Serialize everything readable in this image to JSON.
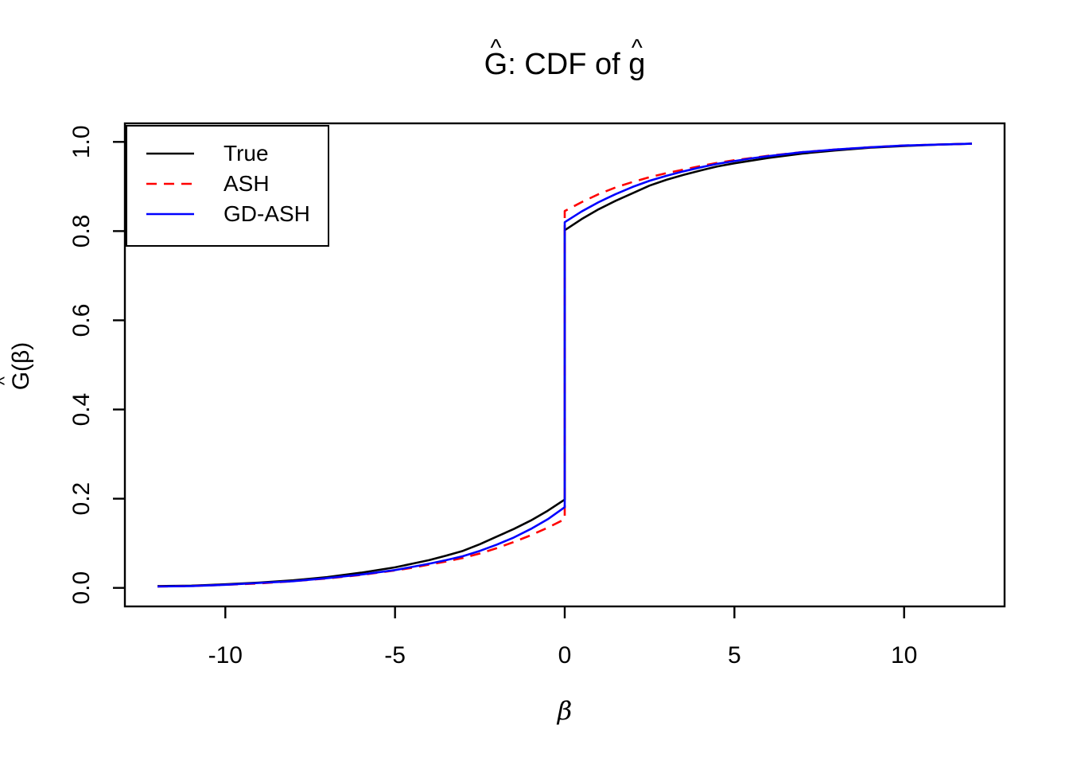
{
  "chart_data": {
    "type": "line",
    "title": "Ĝ: CDF of ĝ",
    "title_parts": [
      {
        "text": "G",
        "hat": true
      },
      {
        "text": ": CDF of ",
        "hat": false
      },
      {
        "text": "g",
        "hat": true
      }
    ],
    "hat_char": "^",
    "xlabel": "β",
    "ylabel": "Ĝ(β)",
    "ylabel_parts": [
      {
        "text": "G",
        "hat": true
      },
      {
        "text": "(β)",
        "hat": false
      }
    ],
    "xlim": [
      -12.96,
      12.96
    ],
    "ylim": [
      -0.0416,
      1.0416
    ],
    "grid": false,
    "background": "#FFFFFF",
    "axis_color": "#000000",
    "x_ticks": [
      {
        "value": -10,
        "label": "-10"
      },
      {
        "value": -5,
        "label": "-5"
      },
      {
        "value": 0,
        "label": "0"
      },
      {
        "value": 5,
        "label": "5"
      },
      {
        "value": 10,
        "label": "10"
      }
    ],
    "y_ticks": [
      {
        "value": 0.0,
        "label": "0.0"
      },
      {
        "value": 0.2,
        "label": "0.2"
      },
      {
        "value": 0.4,
        "label": "0.4"
      },
      {
        "value": 0.6,
        "label": "0.6"
      },
      {
        "value": 0.8,
        "label": "0.8"
      },
      {
        "value": 1.0,
        "label": "1.0"
      }
    ],
    "legend": {
      "position": "topleft",
      "entries": [
        {
          "label": "True",
          "color": "#000000",
          "dash": null
        },
        {
          "label": "ASH",
          "color": "#FF0000",
          "dash": [
            13,
            9
          ]
        },
        {
          "label": "GD-ASH",
          "color": "#0000FF",
          "dash": null
        }
      ]
    },
    "series": [
      {
        "name": "True",
        "color": "#000000",
        "dash": null,
        "jump_at_zero": {
          "from": 0.198,
          "to": 0.802
        },
        "points": [
          [
            -12,
            0.004
          ],
          [
            -11,
            0.005
          ],
          [
            -10,
            0.008
          ],
          [
            -9,
            0.012
          ],
          [
            -8,
            0.017
          ],
          [
            -7,
            0.024
          ],
          [
            -6,
            0.034
          ],
          [
            -5,
            0.046
          ],
          [
            -4.5,
            0.054
          ],
          [
            -4,
            0.062
          ],
          [
            -3.5,
            0.072
          ],
          [
            -3,
            0.083
          ],
          [
            -2.5,
            0.098
          ],
          [
            -2,
            0.115
          ],
          [
            -1.5,
            0.132
          ],
          [
            -1,
            0.151
          ],
          [
            -0.5,
            0.173
          ],
          [
            0,
            0.198
          ],
          [
            0,
            0.802
          ],
          [
            0.5,
            0.827
          ],
          [
            1,
            0.849
          ],
          [
            1.5,
            0.868
          ],
          [
            2,
            0.885
          ],
          [
            2.5,
            0.902
          ],
          [
            3,
            0.915
          ],
          [
            3.5,
            0.926
          ],
          [
            4,
            0.936
          ],
          [
            4.5,
            0.945
          ],
          [
            5,
            0.952
          ],
          [
            5.5,
            0.958
          ],
          [
            6,
            0.964
          ],
          [
            7,
            0.974
          ],
          [
            8,
            0.981
          ],
          [
            9,
            0.987
          ],
          [
            10,
            0.991
          ],
          [
            11,
            0.994
          ],
          [
            12,
            0.996
          ]
        ]
      },
      {
        "name": "ASH",
        "color": "#FF0000",
        "dash": [
          13,
          9
        ],
        "jump_at_zero": {
          "from": 0.154,
          "to": 0.845
        },
        "points": [
          [
            -12,
            0.003
          ],
          [
            -11,
            0.004
          ],
          [
            -10,
            0.007
          ],
          [
            -9,
            0.01
          ],
          [
            -8,
            0.015
          ],
          [
            -7,
            0.021
          ],
          [
            -6,
            0.029
          ],
          [
            -5,
            0.039
          ],
          [
            -4.5,
            0.045
          ],
          [
            -4,
            0.052
          ],
          [
            -3.5,
            0.059
          ],
          [
            -3,
            0.067
          ],
          [
            -2.5,
            0.077
          ],
          [
            -2,
            0.089
          ],
          [
            -1.5,
            0.103
          ],
          [
            -1,
            0.118
          ],
          [
            -0.5,
            0.135
          ],
          [
            0,
            0.154
          ],
          [
            0,
            0.845
          ],
          [
            0.5,
            0.865
          ],
          [
            1,
            0.883
          ],
          [
            1.5,
            0.898
          ],
          [
            2,
            0.91
          ],
          [
            2.5,
            0.921
          ],
          [
            3,
            0.93
          ],
          [
            3.5,
            0.938
          ],
          [
            4,
            0.946
          ],
          [
            4.5,
            0.953
          ],
          [
            5,
            0.959
          ],
          [
            5.5,
            0.964
          ],
          [
            6,
            0.969
          ],
          [
            7,
            0.977
          ],
          [
            8,
            0.983
          ],
          [
            9,
            0.988
          ],
          [
            10,
            0.992
          ],
          [
            11,
            0.994
          ],
          [
            12,
            0.996
          ]
        ]
      },
      {
        "name": "GD-ASH",
        "color": "#0000FF",
        "dash": null,
        "jump_at_zero": {
          "from": 0.181,
          "to": 0.82
        },
        "points": [
          [
            -12,
            0.003
          ],
          [
            -11,
            0.004
          ],
          [
            -10,
            0.007
          ],
          [
            -9,
            0.011
          ],
          [
            -8,
            0.015
          ],
          [
            -7,
            0.022
          ],
          [
            -6,
            0.03
          ],
          [
            -5,
            0.04
          ],
          [
            -4.5,
            0.047
          ],
          [
            -4,
            0.054
          ],
          [
            -3.5,
            0.062
          ],
          [
            -3,
            0.071
          ],
          [
            -2.5,
            0.083
          ],
          [
            -2,
            0.097
          ],
          [
            -1.5,
            0.113
          ],
          [
            -1,
            0.132
          ],
          [
            -0.5,
            0.154
          ],
          [
            0,
            0.181
          ],
          [
            0,
            0.82
          ],
          [
            0.5,
            0.844
          ],
          [
            1,
            0.865
          ],
          [
            1.5,
            0.883
          ],
          [
            2,
            0.899
          ],
          [
            2.5,
            0.913
          ],
          [
            3,
            0.924
          ],
          [
            3.5,
            0.934
          ],
          [
            4,
            0.943
          ],
          [
            4.5,
            0.951
          ],
          [
            5,
            0.957
          ],
          [
            5.5,
            0.963
          ],
          [
            6,
            0.968
          ],
          [
            7,
            0.977
          ],
          [
            8,
            0.983
          ],
          [
            9,
            0.988
          ],
          [
            10,
            0.992
          ],
          [
            11,
            0.994
          ],
          [
            12,
            0.996
          ]
        ]
      }
    ]
  }
}
